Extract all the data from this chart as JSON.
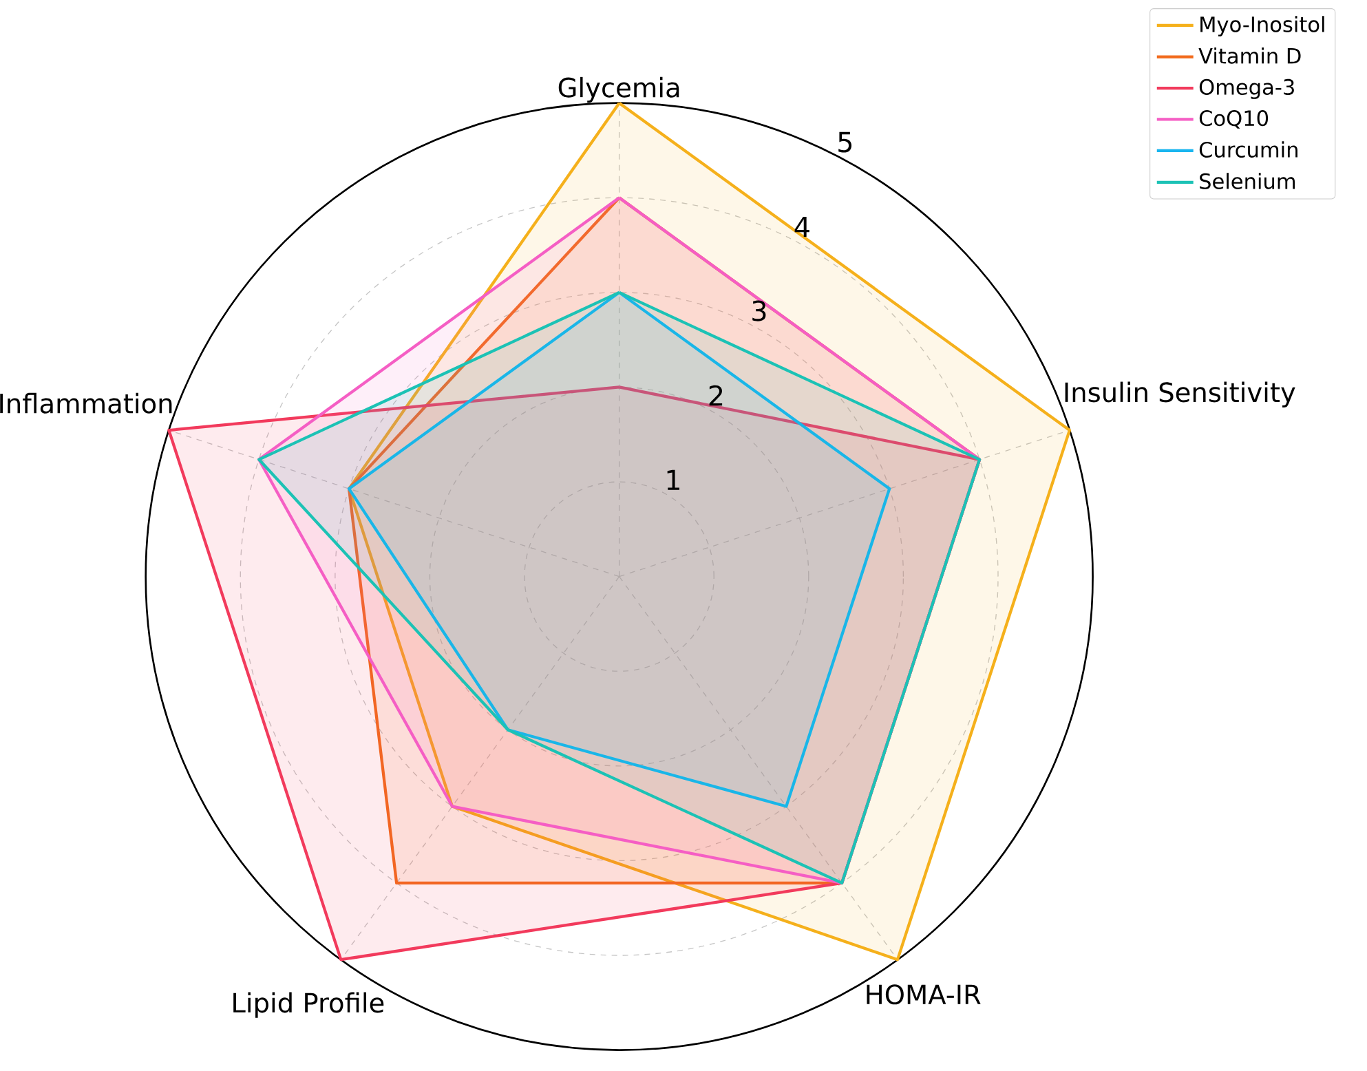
{
  "chart_data": {
    "type": "radar",
    "categories": [
      "Glycemia",
      "Insulin Sensitivity",
      "HOMA-IR",
      "Lipid Profile",
      "Inflammation"
    ],
    "series": [
      {
        "name": "Myo-Inositol",
        "color": "#f5b01b",
        "values": [
          5,
          5,
          5,
          3,
          3
        ]
      },
      {
        "name": "Vitamin D",
        "color": "#f26b1d",
        "values": [
          4,
          4,
          4,
          4,
          3
        ]
      },
      {
        "name": "Omega-3",
        "color": "#f23a5c",
        "values": [
          2,
          4,
          4,
          5,
          5
        ]
      },
      {
        "name": "CoQ10",
        "color": "#f55ec4",
        "values": [
          4,
          4,
          4,
          3,
          4
        ]
      },
      {
        "name": "Curcumin",
        "color": "#19b5ef",
        "values": [
          3,
          3,
          3,
          2,
          3
        ]
      },
      {
        "name": "Selenium",
        "color": "#1cc2b5",
        "values": [
          3,
          4,
          4,
          2,
          4
        ]
      }
    ],
    "ylim": [
      0,
      5
    ],
    "yticks": [
      1,
      2,
      3,
      4,
      5
    ],
    "grid": true,
    "legend": "top right"
  }
}
